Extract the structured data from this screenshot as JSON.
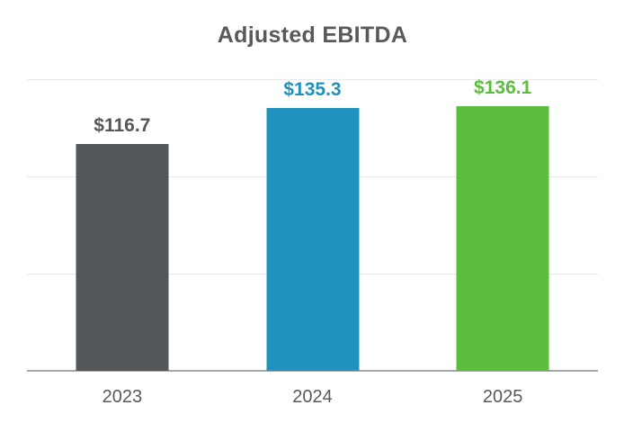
{
  "chart_data": {
    "type": "bar",
    "title": "Adjusted EBITDA",
    "categories": [
      "2023",
      "2024",
      "2025"
    ],
    "values": [
      116.7,
      135.3,
      136.1
    ],
    "value_labels": [
      "$116.7",
      "$135.3",
      "$136.1"
    ],
    "xlabel": "",
    "ylabel": "",
    "ylim": [
      0,
      150
    ],
    "gridline_values": [
      50,
      100,
      150
    ],
    "grid": "horizontal",
    "legend": "none",
    "y_tick_labels_visible": false,
    "colors": {
      "bars": [
        "#54575A",
        "#2191BD",
        "#5ABD3C"
      ],
      "value_labels": [
        "#54575A",
        "#2191BD",
        "#5ABD3C"
      ],
      "title": "#58595B",
      "tick_labels": "#595959",
      "gridline": "#E8E8E8",
      "axis_line": "#A6A6A6",
      "background": "#FFFFFF"
    }
  }
}
